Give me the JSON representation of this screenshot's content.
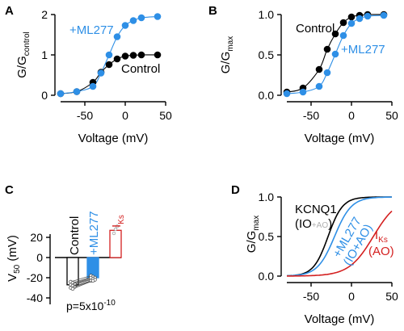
{
  "colors": {
    "control": "#000000",
    "ml277": "#2e8fe6",
    "iks": "#d42020",
    "sub_label": "#b0b0b0",
    "light_sym": "#ffffff"
  },
  "panels": {
    "A": "A",
    "B": "B",
    "C": "C",
    "D": "D"
  },
  "chart_data": [
    {
      "panel": "A",
      "type": "line",
      "ylabel_main": "G/G",
      "ylabel_sub": "control",
      "xlabel": "Voltage (mV)",
      "xlim": [
        -80,
        50
      ],
      "ylim": [
        0,
        2
      ],
      "xticks": [
        "-50",
        "0",
        "50"
      ],
      "yticks": [
        "0",
        "1",
        "2"
      ],
      "labels": {
        "ml277": "+ML277",
        "control": "Control"
      },
      "series": [
        {
          "key": "control",
          "name": "Control",
          "x": [
            -80,
            -60,
            -40,
            -30,
            -20,
            -10,
            0,
            10,
            20,
            40
          ],
          "y": [
            0.04,
            0.09,
            0.32,
            0.57,
            0.76,
            0.9,
            0.97,
            0.99,
            1.0,
            1.0
          ]
        },
        {
          "key": "ml277",
          "name": "+ML277",
          "x": [
            -80,
            -60,
            -40,
            -30,
            -20,
            -10,
            0,
            10,
            20,
            40
          ],
          "y": [
            0.04,
            0.09,
            0.22,
            0.55,
            1.0,
            1.45,
            1.73,
            1.85,
            1.92,
            1.95
          ]
        }
      ]
    },
    {
      "panel": "B",
      "type": "line",
      "ylabel_main": "G/G",
      "ylabel_sub": "max",
      "xlabel": "Voltage (mV)",
      "xlim": [
        -80,
        50
      ],
      "ylim": [
        0,
        1
      ],
      "xticks": [
        "-50",
        "0",
        "50"
      ],
      "yticks": [
        "0.0",
        "0.5",
        "1.0"
      ],
      "labels": {
        "control": "Control",
        "ml277": "+ML277"
      },
      "series": [
        {
          "key": "control",
          "name": "Control",
          "x": [
            -80,
            -60,
            -40,
            -30,
            -20,
            -10,
            0,
            10,
            20,
            40
          ],
          "y": [
            0.04,
            0.09,
            0.32,
            0.57,
            0.76,
            0.9,
            0.97,
            0.99,
            1.0,
            1.0
          ]
        },
        {
          "key": "ml277",
          "name": "+ML277",
          "x": [
            -80,
            -60,
            -40,
            -30,
            -20,
            -10,
            0,
            10,
            20,
            40
          ],
          "y": [
            0.02,
            0.04,
            0.11,
            0.28,
            0.51,
            0.74,
            0.89,
            0.95,
            0.98,
            0.99
          ]
        }
      ]
    },
    {
      "panel": "C",
      "type": "bar",
      "ylabel_main": "V",
      "ylabel_sub": "50",
      "ylabel_unit": " (mV)",
      "ylim": [
        -40,
        30
      ],
      "yticks": [
        "20",
        "0",
        "-20",
        "-40"
      ],
      "categories": [
        "Control",
        "+ML277",
        "I"
      ],
      "iks_sub": "Ks",
      "values": [
        -27,
        -20,
        27
      ],
      "annotation": {
        "text": "p=5x10",
        "exponent": "-10"
      },
      "paired_control": [
        -24,
        -25,
        -26,
        -27,
        -28,
        -29,
        -30,
        -31
      ],
      "paired_ml277": [
        -18,
        -19,
        -20,
        -20,
        -21,
        -22,
        -23,
        -23
      ],
      "iks_points": [
        24,
        28,
        31
      ]
    },
    {
      "panel": "D",
      "type": "line",
      "ylabel_main": "G/G",
      "ylabel_sub": "max",
      "xlabel": "Voltage (mV)",
      "xlim": [
        -80,
        50
      ],
      "ylim": [
        0,
        1
      ],
      "xticks": [
        "-50",
        "0",
        "50"
      ],
      "yticks": [
        "0.0",
        "0.5",
        "1.0"
      ],
      "labels": {
        "kcnq1": "KCNQ1",
        "io_open": "(IO",
        "ao_small": "+AO",
        "io_close": ")",
        "ml277_1": "+ML277",
        "ml277_2": "(IO+AO)",
        "iks_main": "I",
        "iks_sub": "Ks",
        "ao": "(AO)"
      },
      "series": [
        {
          "key": "control",
          "name": "KCNQ1",
          "v_half": -29,
          "slope": 9
        },
        {
          "key": "ml277",
          "name": "+ML277",
          "v_half": -21,
          "slope": 10.5
        },
        {
          "key": "iks",
          "name": "IKs",
          "v_half": 27,
          "slope": 15
        }
      ]
    }
  ]
}
